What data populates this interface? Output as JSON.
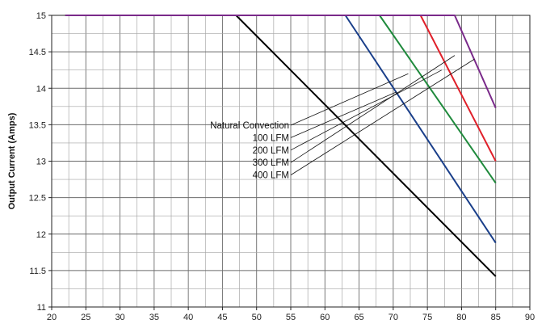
{
  "chart_data": {
    "type": "line",
    "title": "",
    "xlabel": "",
    "ylabel": "Output Current (Amps)",
    "xlim": [
      20,
      90
    ],
    "ylim": [
      11,
      15
    ],
    "xticks": [
      20,
      25,
      30,
      35,
      40,
      45,
      50,
      55,
      60,
      65,
      70,
      75,
      80,
      85,
      90
    ],
    "yticks": [
      11,
      11.5,
      12,
      12.5,
      13,
      13.5,
      14,
      14.5,
      15
    ],
    "grid": true,
    "series": [
      {
        "name": "Natural Convection",
        "color": "#000000",
        "points": [
          [
            22,
            15
          ],
          [
            47,
            15
          ],
          [
            85,
            11.42
          ]
        ],
        "callout_to": [
          72.2,
          14.2
        ]
      },
      {
        "name": "100 LFM",
        "color": "#1a3f8a",
        "points": [
          [
            22,
            15
          ],
          [
            63,
            15
          ],
          [
            85,
            11.88
          ]
        ],
        "callout_to": [
          70.5,
          13.95
        ]
      },
      {
        "name": "200 LFM",
        "color": "#1f8a3c",
        "points": [
          [
            22,
            15
          ],
          [
            68,
            15
          ],
          [
            85,
            12.7
          ]
        ],
        "callout_to": [
          77.1,
          14.25
        ]
      },
      {
        "name": "300 LFM",
        "color": "#e0202a",
        "points": [
          [
            22,
            15
          ],
          [
            74,
            15
          ],
          [
            85,
            13.0
          ]
        ],
        "callout_to": [
          79.0,
          14.45
        ]
      },
      {
        "name": "400 LFM",
        "color": "#7a2a8a",
        "points": [
          [
            22,
            15
          ],
          [
            79,
            15
          ],
          [
            85,
            13.73
          ]
        ],
        "callout_to": [
          81.9,
          14.4
        ]
      }
    ],
    "flat_line": {
      "color": "#7a2a8a",
      "x": [
        22,
        79
      ],
      "y": 15
    }
  }
}
